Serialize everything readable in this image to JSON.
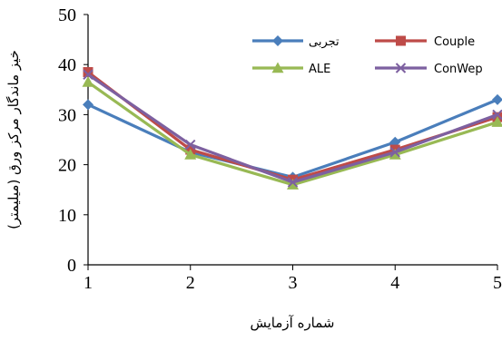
{
  "chart_data": {
    "type": "line",
    "title": "",
    "xlabel": "شماره آزمایش",
    "ylabel": "خیز ماندگار مرکز ورق (میلیمتر)",
    "x": [
      1,
      2,
      3,
      4,
      5
    ],
    "xlim": [
      1,
      5
    ],
    "ylim": [
      0,
      50
    ],
    "yticks": [
      0,
      10,
      20,
      30,
      40,
      50
    ],
    "xticks": [
      1,
      2,
      3,
      4,
      5
    ],
    "grid": false,
    "legend_position": "top-right",
    "series": [
      {
        "name": "تجربی",
        "values": [
          32,
          22.5,
          17.5,
          24.5,
          33
        ],
        "color": "#4a7ebb",
        "marker": "diamond"
      },
      {
        "name": "Couple",
        "values": [
          38.5,
          23,
          17,
          23,
          29.5
        ],
        "color": "#be4b48",
        "marker": "square"
      },
      {
        "name": "ALE",
        "values": [
          36.5,
          22,
          16,
          22,
          28.5
        ],
        "color": "#98b954",
        "marker": "triangle"
      },
      {
        "name": "ConWep",
        "values": [
          38,
          24,
          16.5,
          22.5,
          30
        ],
        "color": "#7d60a0",
        "marker": "x"
      }
    ]
  }
}
